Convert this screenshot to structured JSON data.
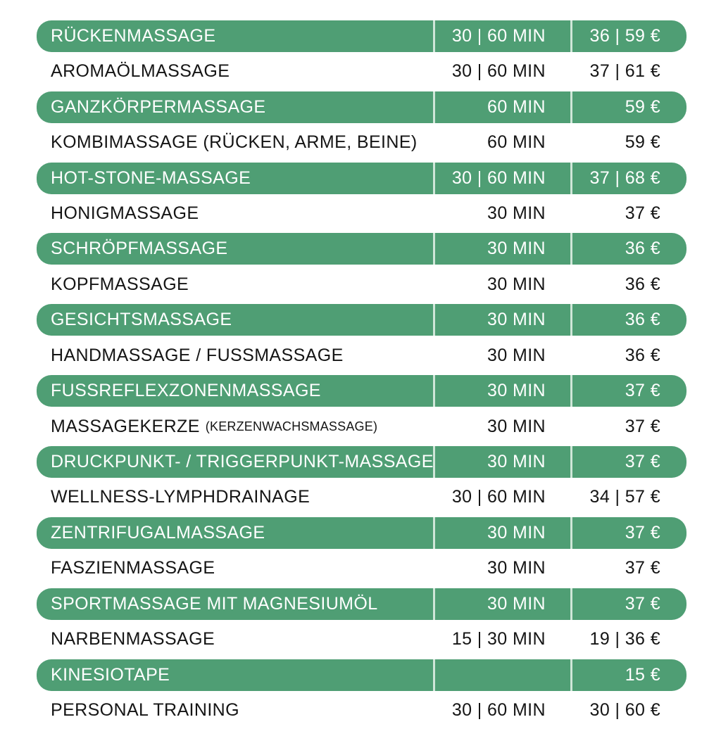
{
  "colors": {
    "row_highlight_green": "#4f9e74",
    "divider_on_green": "#cfe6d8",
    "text_on_green": "#ffffff",
    "text_on_white": "#151515",
    "page_background": "#ffffff"
  },
  "price_list": {
    "columns": [
      "service",
      "duration",
      "price"
    ],
    "rows": [
      {
        "name": "RÜCKENMASSAGE",
        "note": "",
        "duration": "30 | 60 MIN",
        "price": "36 | 59 €",
        "highlight": true
      },
      {
        "name": "AROMAÖLMASSAGE",
        "note": "",
        "duration": "30 | 60 MIN",
        "price": "37 | 61 €",
        "highlight": false
      },
      {
        "name": "GANZKÖRPERMASSAGE",
        "note": "",
        "duration": "60 MIN",
        "price": "59 €",
        "highlight": true
      },
      {
        "name": "KOMBIMASSAGE (RÜCKEN, ARME, BEINE)",
        "note": "",
        "duration": "60 MIN",
        "price": "59 €",
        "highlight": false
      },
      {
        "name": "HOT-STONE-MASSAGE",
        "note": "",
        "duration": "30 | 60 MIN",
        "price": "37 | 68 €",
        "highlight": true
      },
      {
        "name": "HONIGMASSAGE",
        "note": "",
        "duration": "30 MIN",
        "price": "37 €",
        "highlight": false
      },
      {
        "name": "SCHRÖPFMASSAGE",
        "note": "",
        "duration": "30 MIN",
        "price": "36 €",
        "highlight": true
      },
      {
        "name": "KOPFMASSAGE",
        "note": "",
        "duration": "30 MIN",
        "price": "36 €",
        "highlight": false
      },
      {
        "name": "GESICHTSMASSAGE",
        "note": "",
        "duration": "30 MIN",
        "price": "36 €",
        "highlight": true
      },
      {
        "name": "HANDMASSAGE / FUSSMASSAGE",
        "note": "",
        "duration": "30 MIN",
        "price": "36 €",
        "highlight": false
      },
      {
        "name": "FUSSREFLEXZONENMASSAGE",
        "note": "",
        "duration": "30 MIN",
        "price": "37 €",
        "highlight": true
      },
      {
        "name": "MASSAGEKERZE",
        "note": "(KERZENWACHSMASSAGE)",
        "duration": "30 MIN",
        "price": "37 €",
        "highlight": false
      },
      {
        "name": "DRUCKPUNKT- / TRIGGERPUNKT-MASSAGE",
        "note": "",
        "duration": "30 MIN",
        "price": "37 €",
        "highlight": true
      },
      {
        "name": "WELLNESS-LYMPHDRAINAGE",
        "note": "",
        "duration": "30 | 60 MIN",
        "price": "34 | 57 €",
        "highlight": false
      },
      {
        "name": "ZENTRIFUGALMASSAGE",
        "note": "",
        "duration": "30 MIN",
        "price": "37 €",
        "highlight": true
      },
      {
        "name": "FASZIENMASSAGE",
        "note": "",
        "duration": "30 MIN",
        "price": "37 €",
        "highlight": false
      },
      {
        "name": "SPORTMASSAGE MIT MAGNESIUMÖL",
        "note": "",
        "duration": "30 MIN",
        "price": "37 €",
        "highlight": true
      },
      {
        "name": "NARBENMASSAGE",
        "note": "",
        "duration": "15 | 30 MIN",
        "price": "19 | 36 €",
        "highlight": false
      },
      {
        "name": "KINESIOTAPE",
        "note": "",
        "duration": "",
        "price": "15 €",
        "highlight": true
      },
      {
        "name": "PERSONAL TRAINING",
        "note": "",
        "duration": "30 | 60 MIN",
        "price": "30 | 60 €",
        "highlight": false
      }
    ]
  }
}
